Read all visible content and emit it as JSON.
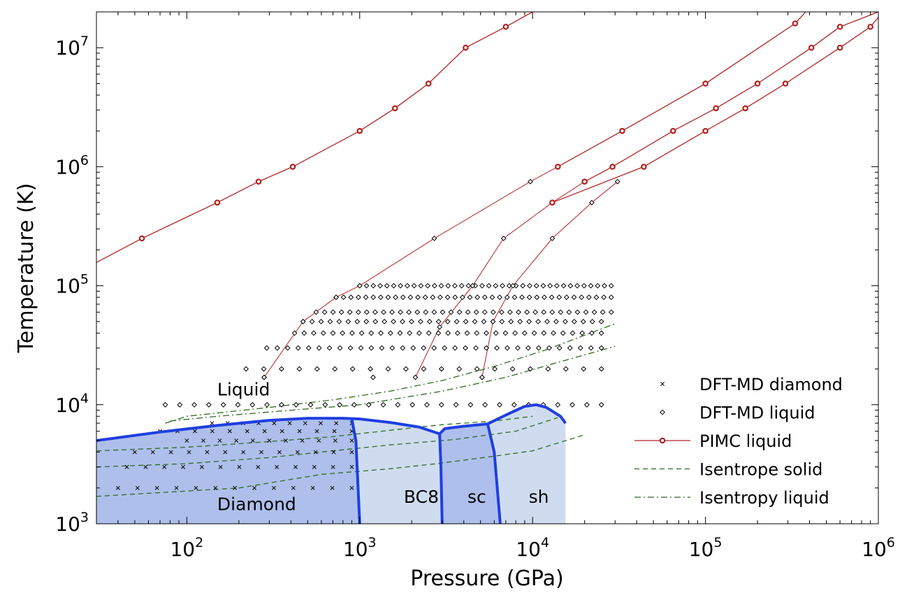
{
  "chart_data": {
    "type": "scatter",
    "xlabel": "Pressure (GPa)",
    "ylabel": "Temperature (K)",
    "xscale": "log",
    "yscale": "log",
    "xlim": [
      30,
      1000000
    ],
    "ylim": [
      1000,
      20000000
    ],
    "x_ticks": [
      {
        "base": "10",
        "exp": "2",
        "value": 100
      },
      {
        "base": "10",
        "exp": "3",
        "value": 1000
      },
      {
        "base": "10",
        "exp": "4",
        "value": 10000
      },
      {
        "base": "10",
        "exp": "5",
        "value": 100000
      },
      {
        "base": "10",
        "exp": "6",
        "value": 1000000
      }
    ],
    "y_ticks": [
      {
        "base": "10",
        "exp": "3",
        "value": 1000
      },
      {
        "base": "10",
        "exp": "4",
        "value": 10000
      },
      {
        "base": "10",
        "exp": "5",
        "value": 100000
      },
      {
        "base": "10",
        "exp": "6",
        "value": 1000000
      },
      {
        "base": "10",
        "exp": "7",
        "value": 10000000
      }
    ],
    "colors": {
      "pimc": "#b22222",
      "boundary": "#1f3fe0",
      "diamond_fill": "#aebfec",
      "bc8_fill": "#cfdcf0",
      "sc_fill": "#aebfec",
      "sh_fill": "#cfdcf0",
      "isentrope": "#2e6b1e"
    },
    "legend": {
      "placement": "bottom-right",
      "entries": [
        {
          "label": "DFT-MD diamond",
          "style": "cross"
        },
        {
          "label": "DFT-MD liquid",
          "style": "diamond"
        },
        {
          "label": "PIMC liquid",
          "style": "pimc"
        },
        {
          "label": "Isentrope solid",
          "style": "dashed"
        },
        {
          "label": "Isentropy liquid",
          "style": "dashdot"
        }
      ]
    },
    "region_labels": [
      {
        "id": "liquid",
        "text": "Liquid",
        "p": 150,
        "t": 12000
      },
      {
        "id": "diamond",
        "text": "Diamond",
        "p": 150,
        "t": 1300
      },
      {
        "id": "bc8",
        "text": "BC8",
        "p": 1800,
        "t": 1500
      },
      {
        "id": "sc",
        "text": "sc",
        "p": 4200,
        "t": 1500
      },
      {
        "id": "sh",
        "text": "sh",
        "p": 9500,
        "t": 1500
      }
    ],
    "phase_regions": [
      {
        "name": "diamond",
        "color": "diamond_fill",
        "points": [
          [
            30,
            1000
          ],
          [
            30,
            5000
          ],
          [
            70,
            5900
          ],
          [
            150,
            6700
          ],
          [
            300,
            7400
          ],
          [
            500,
            7700
          ],
          [
            800,
            7700
          ],
          [
            900,
            7600
          ],
          [
            950,
            5000
          ],
          [
            1000,
            1000
          ]
        ]
      },
      {
        "name": "bc8",
        "color": "bc8_fill",
        "points": [
          [
            1000,
            1000
          ],
          [
            950,
            5000
          ],
          [
            900,
            7600
          ],
          [
            1000,
            7600
          ],
          [
            1500,
            7100
          ],
          [
            2200,
            6500
          ],
          [
            2900,
            5700
          ],
          [
            2950,
            3000
          ],
          [
            3000,
            1000
          ]
        ]
      },
      {
        "name": "sc",
        "color": "sc_fill",
        "points": [
          [
            3000,
            1000
          ],
          [
            2950,
            3000
          ],
          [
            2900,
            5700
          ],
          [
            3100,
            6300
          ],
          [
            4000,
            6600
          ],
          [
            5500,
            6900
          ],
          [
            6000,
            4000
          ],
          [
            6500,
            1000
          ]
        ]
      },
      {
        "name": "sh",
        "color": "sh_fill",
        "points": [
          [
            6500,
            1000
          ],
          [
            6000,
            4000
          ],
          [
            5500,
            6900
          ],
          [
            7000,
            8200
          ],
          [
            9000,
            9700
          ],
          [
            10500,
            10000
          ],
          [
            12000,
            9500
          ],
          [
            14500,
            8000
          ],
          [
            15500,
            7000
          ],
          [
            15500,
            1000
          ]
        ]
      }
    ],
    "phase_boundaries": [
      [
        [
          30,
          5000
        ],
        [
          70,
          5900
        ],
        [
          150,
          6700
        ],
        [
          300,
          7400
        ],
        [
          500,
          7700
        ],
        [
          800,
          7700
        ],
        [
          1000,
          7600
        ],
        [
          1500,
          7100
        ],
        [
          2200,
          6500
        ],
        [
          2900,
          5700
        ]
      ],
      [
        [
          900,
          7600
        ],
        [
          950,
          5000
        ],
        [
          1000,
          1000
        ]
      ],
      [
        [
          2900,
          5700
        ],
        [
          2950,
          3000
        ],
        [
          3000,
          1000
        ]
      ],
      [
        [
          2900,
          5700
        ],
        [
          3100,
          6300
        ],
        [
          4000,
          6600
        ],
        [
          5500,
          6900
        ]
      ],
      [
        [
          5500,
          6900
        ],
        [
          6000,
          4000
        ],
        [
          6500,
          1000
        ]
      ],
      [
        [
          5500,
          6900
        ],
        [
          7000,
          8200
        ],
        [
          9000,
          9700
        ],
        [
          10500,
          10000
        ],
        [
          12000,
          9500
        ],
        [
          14500,
          8000
        ],
        [
          15500,
          7000
        ]
      ]
    ],
    "series": [
      {
        "name": "PIMC liquid",
        "style": "pimc",
        "points": [
          [
            55,
            250000
          ],
          [
            150,
            500000
          ],
          [
            260,
            750000
          ],
          [
            410,
            1000000
          ],
          [
            1000,
            2000000
          ],
          [
            1600,
            3100000
          ],
          [
            2500,
            5000000
          ],
          [
            4100,
            10000000
          ],
          [
            7000,
            15000000
          ]
        ],
        "line_start": [
          30,
          157000
        ],
        "line_end": [
          10000,
          20000000
        ]
      },
      {
        "name": "PIMC liquid",
        "style": "pimc",
        "points": [
          [
            33000,
            2000000
          ],
          [
            14000,
            1000000
          ],
          [
            100000,
            5000000
          ],
          [
            330000,
            16000000
          ]
        ],
        "line_end": [
          380000,
          20000000
        ]
      },
      {
        "name": "PIMC liquid",
        "style": "pimc",
        "points": [
          [
            20000,
            750000
          ],
          [
            29000,
            1000000
          ],
          [
            65000,
            2000000
          ],
          [
            115000,
            3100000
          ],
          [
            200000,
            5000000
          ],
          [
            410000,
            10000000
          ],
          [
            600000,
            15000000
          ]
        ],
        "line_end": [
          1000000,
          20000000
        ]
      },
      {
        "name": "PIMC liquid",
        "style": "pimc",
        "points": [
          [
            13000,
            500000
          ],
          [
            44000,
            1000000
          ],
          [
            100000,
            2000000
          ],
          [
            170000,
            3100000
          ],
          [
            290000,
            5000000
          ],
          [
            600000,
            10000000
          ],
          [
            900000,
            15000000
          ]
        ],
        "line_end": [
          1000000,
          18000000
        ]
      },
      {
        "name": "DFT-MD liquid (isotherm path)",
        "style": "thinred",
        "points": [
          [
            280,
            17000
          ],
          [
            470,
            50000
          ],
          [
            730,
            80000
          ],
          [
            1000,
            100000
          ],
          [
            2700,
            250000
          ],
          [
            9700,
            750000
          ],
          [
            14000,
            1000000
          ]
        ]
      },
      {
        "name": "DFT-MD liquid (isotherm path)",
        "style": "thinred",
        "points": [
          [
            2100,
            17000
          ],
          [
            2900,
            45000
          ],
          [
            4500,
            100000
          ],
          [
            6800,
            250000
          ],
          [
            13000,
            500000
          ],
          [
            20000,
            750000
          ]
        ]
      },
      {
        "name": "DFT-MD liquid (isotherm path)",
        "style": "thinred",
        "points": [
          [
            5100,
            17000
          ],
          [
            5900,
            50000
          ],
          [
            7700,
            100000
          ],
          [
            13000,
            250000
          ],
          [
            22000,
            500000
          ],
          [
            31000,
            750000
          ]
        ]
      },
      {
        "name": "Isentrope solid",
        "style": "dashed",
        "points": [
          [
            30,
            1700
          ],
          [
            200,
            2000
          ],
          [
            600,
            2600
          ],
          [
            1500,
            2900
          ],
          [
            2800,
            3200
          ],
          [
            6000,
            3700
          ],
          [
            10000,
            4100
          ],
          [
            20000,
            5600
          ]
        ]
      },
      {
        "name": "Isentrope solid",
        "style": "dashed",
        "points": [
          [
            30,
            3000
          ],
          [
            100,
            3200
          ],
          [
            300,
            3600
          ],
          [
            700,
            4100
          ],
          [
            1500,
            4600
          ],
          [
            3500,
            5100
          ],
          [
            8000,
            6000
          ],
          [
            14000,
            7800
          ]
        ]
      },
      {
        "name": "Isentrope solid",
        "style": "dashed",
        "points": [
          [
            30,
            4100
          ],
          [
            100,
            4400
          ],
          [
            300,
            4900
          ],
          [
            700,
            5400
          ],
          [
            1500,
            6100
          ],
          [
            3000,
            6800
          ],
          [
            6000,
            7300
          ],
          [
            10000,
            8000
          ]
        ]
      },
      {
        "name": "Isentropy liquid",
        "style": "dashdot",
        "points": [
          [
            75,
            7000
          ],
          [
            100,
            8000
          ],
          [
            300,
            9500
          ],
          [
            700,
            11000
          ],
          [
            1500,
            13000
          ],
          [
            3000,
            16000
          ],
          [
            6000,
            21000
          ],
          [
            12000,
            29000
          ],
          [
            30000,
            48000
          ]
        ]
      },
      {
        "name": "Isentropy liquid",
        "style": "dashdot",
        "points": [
          [
            80,
            7300
          ],
          [
            150,
            8000
          ],
          [
            400,
            9000
          ],
          [
            1000,
            10000
          ],
          [
            3000,
            13000
          ],
          [
            7000,
            17000
          ],
          [
            13000,
            22000
          ],
          [
            30000,
            31000
          ]
        ]
      }
    ],
    "dft_liquid_grid": [
      {
        "t": 100000,
        "p_start": 1000,
        "p_end": 28500,
        "n": 38
      },
      {
        "t": 80000,
        "p_start": 730,
        "p_end": 28500,
        "n": 38
      },
      {
        "t": 60000,
        "p_start": 560,
        "p_end": 28500,
        "n": 36
      },
      {
        "t": 50000,
        "p_start": 470,
        "p_end": 25000,
        "n": 34
      },
      {
        "t": 40000,
        "p_start": 420,
        "p_end": 25000,
        "n": 33
      },
      {
        "t": 30000,
        "p_start": 290,
        "p_end": 25000,
        "n": 33
      },
      {
        "t": 20000,
        "p_start": 220,
        "p_end": 25000,
        "n": 21
      },
      {
        "t": 17000,
        "p_start": 280,
        "p_end": 5100,
        "n": 3
      },
      {
        "t": 10000,
        "p_start": 75,
        "p_end": 25000,
        "n": 31
      }
    ],
    "dft_diamond_grid": [
      {
        "t": 7000,
        "p_start": 140,
        "p_end": 900,
        "n": 10
      },
      {
        "t": 6000,
        "p_start": 70,
        "p_end": 900,
        "n": 12
      },
      {
        "t": 5000,
        "p_start": 100,
        "p_end": 900,
        "n": 11
      },
      {
        "t": 4000,
        "p_start": 50,
        "p_end": 900,
        "n": 13
      },
      {
        "t": 3000,
        "p_start": 45,
        "p_end": 900,
        "n": 13
      },
      {
        "t": 2000,
        "p_start": 40,
        "p_end": 900,
        "n": 13
      }
    ]
  }
}
